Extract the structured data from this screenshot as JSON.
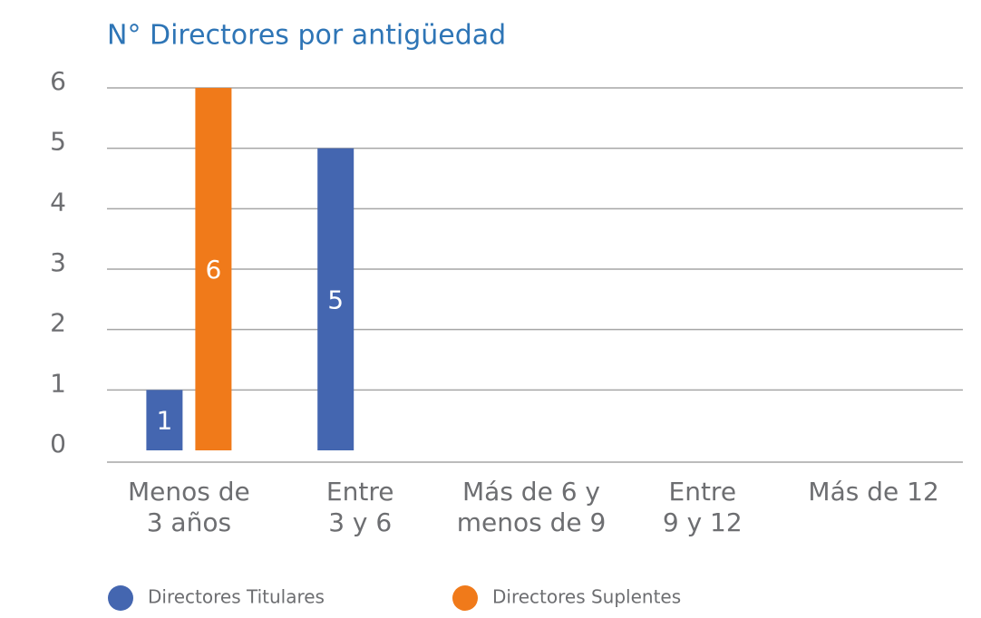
{
  "chart_data": {
    "type": "bar",
    "title": "N° Directores por antigüedad",
    "categories": [
      "Menos de\n3 años",
      "Entre\n3 y 6",
      "Más de 6 y\nmenos de 9",
      "Entre\n9 y 12",
      "Más de 12"
    ],
    "series": [
      {
        "name": "Directores Titulares",
        "color": "#4466b0",
        "values": [
          1,
          5,
          0,
          0,
          0
        ]
      },
      {
        "name": "Directores Suplentes",
        "color": "#f07a1a",
        "values": [
          6,
          0,
          0,
          0,
          0
        ]
      }
    ],
    "ylim": [
      0,
      6
    ],
    "yticks": [
      0,
      1,
      2,
      3,
      4,
      5,
      6
    ],
    "grid": true,
    "legend": "bottom"
  }
}
